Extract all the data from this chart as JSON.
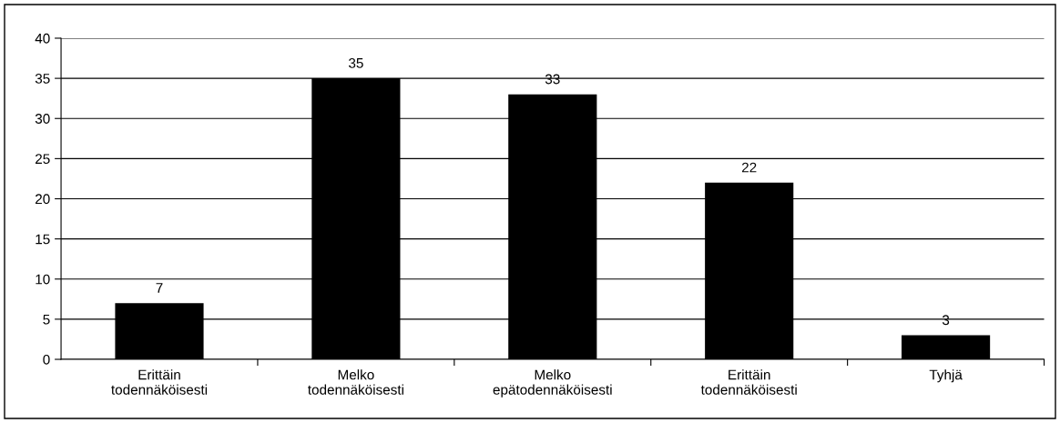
{
  "chart_data": {
    "type": "bar",
    "categories": [
      "Erittäin\ntodennäköisesti",
      "Melko\ntodennäköisesti",
      "Melko\nepätodennäköisesti",
      "Erittäin\ntodennäköisesti",
      "Tyhjä"
    ],
    "values": [
      7,
      35,
      33,
      22,
      3
    ],
    "color": "#000000",
    "ylim": [
      0,
      40
    ],
    "yticks": [
      0,
      5,
      10,
      15,
      20,
      25,
      30,
      35,
      40
    ],
    "grid": "y",
    "data_labels": true
  }
}
